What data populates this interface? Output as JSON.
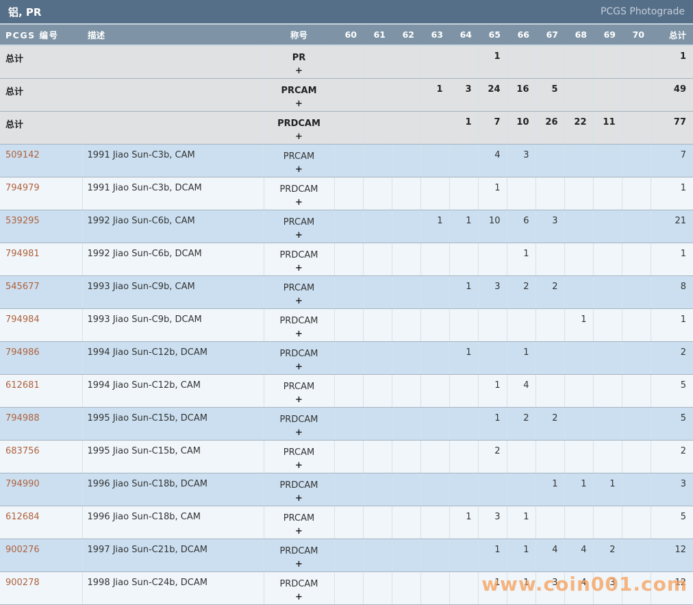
{
  "title_bar": {
    "title": "铝, PR",
    "brand": "PCGS Photograde"
  },
  "table": {
    "headers": {
      "pcgs_no": "PCGS 编号",
      "description": "描述",
      "designation": "称号",
      "total": "总计"
    },
    "grade_columns": [
      "60",
      "61",
      "62",
      "63",
      "64",
      "65",
      "66",
      "67",
      "68",
      "69",
      "70"
    ],
    "rows": [
      {
        "pcgs_no": "总计",
        "is_total": true,
        "description": "",
        "designation": "PR",
        "plus": "+",
        "grades": {
          "65": "1"
        },
        "total": "1"
      },
      {
        "pcgs_no": "总计",
        "is_total": true,
        "description": "",
        "designation": "PRCAM",
        "plus": "+",
        "grades": {
          "63": "1",
          "64": "3",
          "65": "24",
          "66": "16",
          "67": "5"
        },
        "total": "49"
      },
      {
        "pcgs_no": "总计",
        "is_total": true,
        "description": "",
        "designation": "PRDCAM",
        "plus": "+",
        "grades": {
          "64": "1",
          "65": "7",
          "66": "10",
          "67": "26",
          "68": "22",
          "69": "11"
        },
        "total": "77"
      },
      {
        "pcgs_no": "509142",
        "is_total": false,
        "description": "1991 Jiao Sun-C3b, CAM",
        "designation": "PRCAM",
        "plus": "+",
        "grades": {
          "65": "4",
          "66": "3"
        },
        "total": "7"
      },
      {
        "pcgs_no": "794979",
        "is_total": false,
        "description": "1991 Jiao Sun-C3b, DCAM",
        "designation": "PRDCAM",
        "plus": "+",
        "grades": {
          "65": "1"
        },
        "total": "1"
      },
      {
        "pcgs_no": "539295",
        "is_total": false,
        "description": "1992 Jiao Sun-C6b, CAM",
        "designation": "PRCAM",
        "plus": "+",
        "grades": {
          "63": "1",
          "64": "1",
          "65": "10",
          "66": "6",
          "67": "3"
        },
        "total": "21"
      },
      {
        "pcgs_no": "794981",
        "is_total": false,
        "description": "1992 Jiao Sun-C6b, DCAM",
        "designation": "PRDCAM",
        "plus": "+",
        "grades": {
          "66": "1"
        },
        "total": "1"
      },
      {
        "pcgs_no": "545677",
        "is_total": false,
        "description": "1993 Jiao Sun-C9b, CAM",
        "designation": "PRCAM",
        "plus": "+",
        "grades": {
          "64": "1",
          "65": "3",
          "66": "2",
          "67": "2"
        },
        "total": "8"
      },
      {
        "pcgs_no": "794984",
        "is_total": false,
        "description": "1993 Jiao Sun-C9b, DCAM",
        "designation": "PRDCAM",
        "plus": "+",
        "grades": {
          "68": "1"
        },
        "total": "1"
      },
      {
        "pcgs_no": "794986",
        "is_total": false,
        "description": "1994 Jiao Sun-C12b, DCAM",
        "designation": "PRDCAM",
        "plus": "+",
        "grades": {
          "64": "1",
          "66": "1"
        },
        "total": "2"
      },
      {
        "pcgs_no": "612681",
        "is_total": false,
        "description": "1994 Jiao Sun-C12b, CAM",
        "designation": "PRCAM",
        "plus": "+",
        "grades": {
          "65": "1",
          "66": "4"
        },
        "total": "5"
      },
      {
        "pcgs_no": "794988",
        "is_total": false,
        "description": "1995 Jiao Sun-C15b, DCAM",
        "designation": "PRDCAM",
        "plus": "+",
        "grades": {
          "65": "1",
          "66": "2",
          "67": "2"
        },
        "total": "5"
      },
      {
        "pcgs_no": "683756",
        "is_total": false,
        "description": "1995 Jiao Sun-C15b, CAM",
        "designation": "PRCAM",
        "plus": "+",
        "grades": {
          "65": "2"
        },
        "total": "2"
      },
      {
        "pcgs_no": "794990",
        "is_total": false,
        "description": "1996 Jiao Sun-C18b, DCAM",
        "designation": "PRDCAM",
        "plus": "+",
        "grades": {
          "67": "1",
          "68": "1",
          "69": "1"
        },
        "total": "3"
      },
      {
        "pcgs_no": "612684",
        "is_total": false,
        "description": "1996 Jiao Sun-C18b, CAM",
        "designation": "PRCAM",
        "plus": "+",
        "grades": {
          "64": "1",
          "65": "3",
          "66": "1"
        },
        "total": "5"
      },
      {
        "pcgs_no": "900276",
        "is_total": false,
        "description": "1997 Jiao Sun-C21b, DCAM",
        "designation": "PRDCAM",
        "plus": "+",
        "grades": {
          "65": "1",
          "66": "1",
          "67": "4",
          "68": "4",
          "69": "2"
        },
        "total": "12"
      },
      {
        "pcgs_no": "900278",
        "is_total": false,
        "description": "1998 Jiao Sun-C24b, DCAM",
        "designation": "PRDCAM",
        "plus": "+",
        "grades": {
          "65": "1",
          "66": "1",
          "67": "3",
          "68": "4",
          "69": "3"
        },
        "total": "12"
      }
    ]
  },
  "watermark": "www.coin001.com",
  "colors": {
    "title_bar_bg": "#566f88",
    "header_bg": "#7e94a6",
    "total_row_bg": "#dfe1e3",
    "row_blue_bg": "#cbdff0",
    "row_white_bg": "#f0f6fa",
    "link": "#b0613c",
    "watermark": "#f79e57"
  }
}
